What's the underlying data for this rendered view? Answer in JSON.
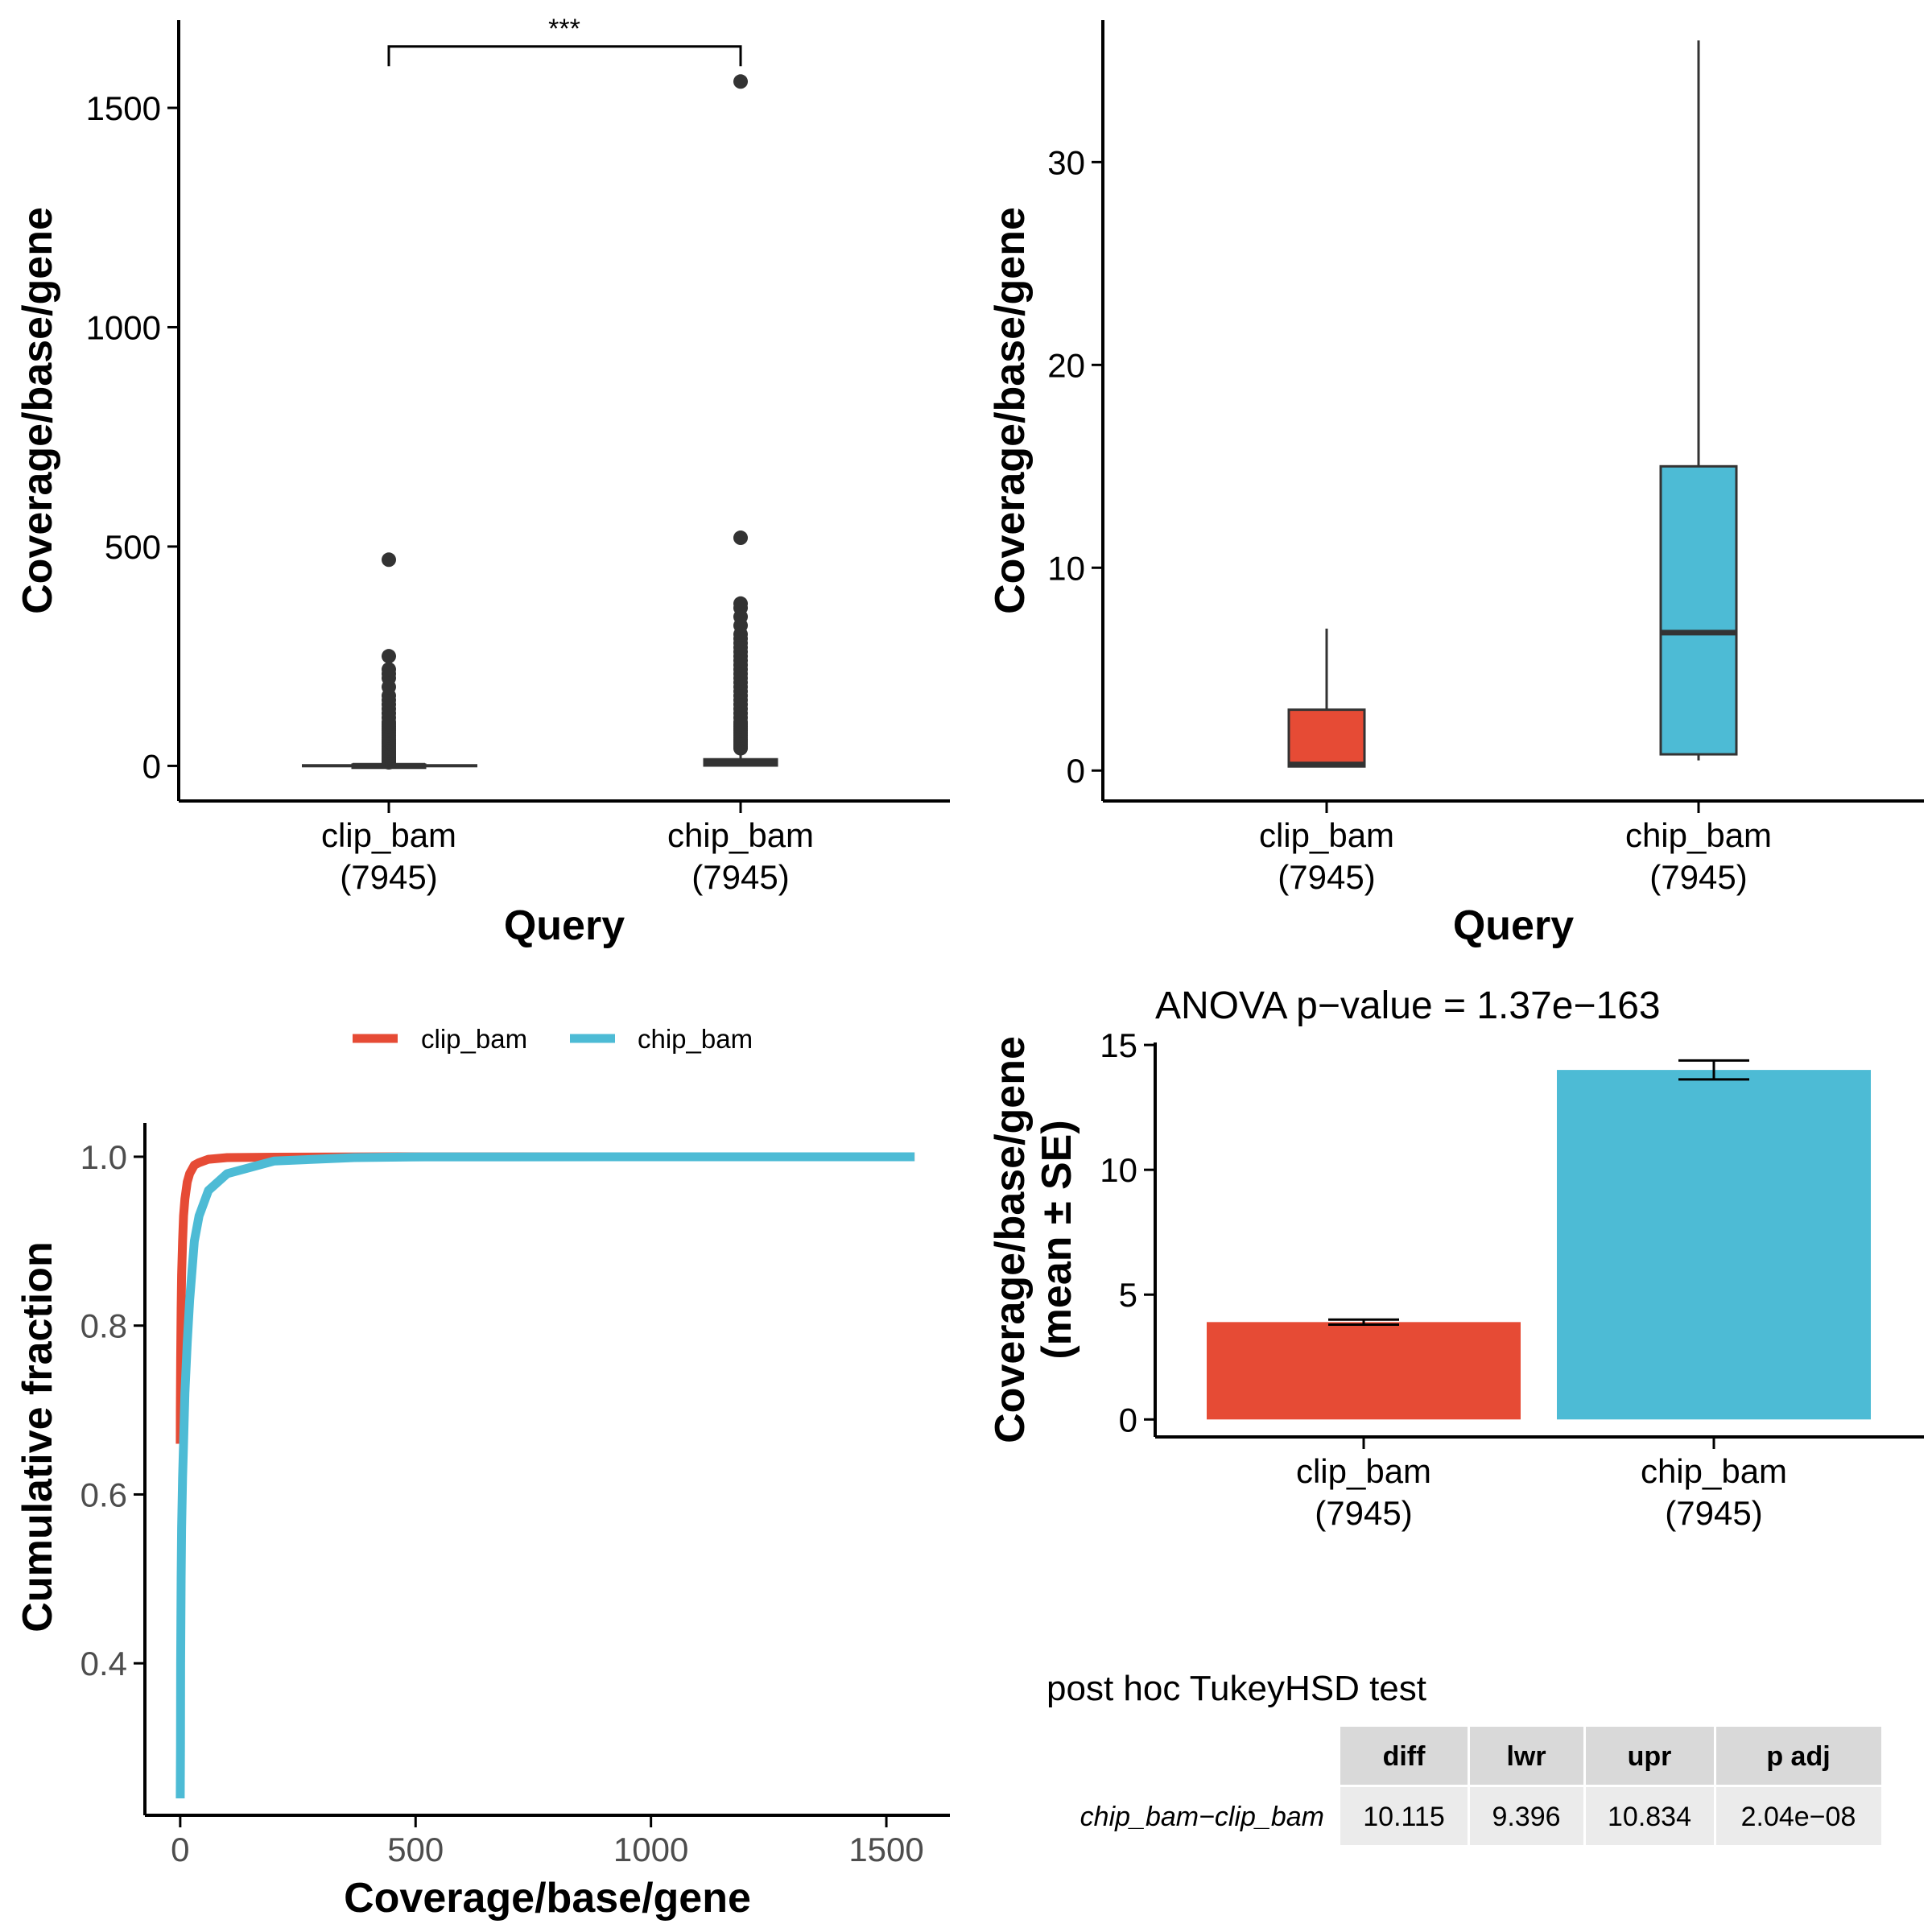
{
  "colors": {
    "clip": "#E64B35",
    "chip": "#4DBBD5",
    "axis": "#000000",
    "box_line": "#333333",
    "table_bg": "#EBEBEB",
    "table_head_bg": "#D9D9D9"
  },
  "chart_data": [
    {
      "id": "boxplot_full",
      "type": "box",
      "xlabel": "Query",
      "ylabel": "Coverage/base/gene",
      "ylim": [
        -80,
        1700
      ],
      "yticks": [
        0,
        500,
        1000,
        1500
      ],
      "categories": [
        {
          "name": "clip_bam",
          "n": "(7945)"
        },
        {
          "name": "chip_bam",
          "n": "(7945)"
        }
      ],
      "boxes": [
        {
          "q1": 0.2,
          "median": 0.3,
          "q3": 3,
          "whisker_low": 0,
          "whisker_high": 7,
          "outliers": [
            8,
            10,
            12,
            14,
            16,
            18,
            20,
            22,
            25,
            28,
            30,
            33,
            36,
            40,
            44,
            48,
            52,
            56,
            60,
            65,
            70,
            75,
            80,
            85,
            90,
            95,
            100,
            110,
            120,
            130,
            140,
            150,
            160,
            180,
            200,
            210,
            220,
            250,
            470
          ]
        },
        {
          "q1": 0.8,
          "median": 6.8,
          "q3": 15,
          "whisker_low": 0.5,
          "whisker_high": 36,
          "outliers": [
            40,
            45,
            50,
            55,
            60,
            65,
            70,
            75,
            80,
            85,
            90,
            95,
            100,
            110,
            120,
            130,
            140,
            150,
            160,
            170,
            180,
            190,
            200,
            210,
            220,
            230,
            240,
            250,
            260,
            270,
            280,
            290,
            300,
            320,
            340,
            360,
            370,
            520,
            1560
          ]
        }
      ],
      "significance": {
        "label": "***",
        "bracket_y": 1640,
        "drop_y": 1595
      }
    },
    {
      "id": "boxplot_zoom",
      "type": "box",
      "xlabel": "Query",
      "ylabel": "Coverage/base/gene",
      "ylim": [
        -1.5,
        37
      ],
      "yticks": [
        0,
        10,
        20,
        30
      ],
      "categories": [
        {
          "name": "clip_bam",
          "n": "(7945)"
        },
        {
          "name": "chip_bam",
          "n": "(7945)"
        }
      ],
      "boxes": [
        {
          "q1": 0.2,
          "median": 0.3,
          "q3": 3,
          "whisker_low": 0.2,
          "whisker_high": 7
        },
        {
          "q1": 0.8,
          "median": 6.8,
          "q3": 15,
          "whisker_low": 0.5,
          "whisker_high": 36
        }
      ]
    },
    {
      "id": "ecdf",
      "type": "line",
      "xlabel": "Coverage/base/gene",
      "ylabel": "Cumulative fraction",
      "xlim": [
        -75,
        1635
      ],
      "ylim": [
        0.22,
        1.04
      ],
      "xticks": [
        0,
        500,
        1000,
        1500
      ],
      "yticks": [
        0.4,
        0.6,
        0.8,
        1.0
      ],
      "ytick_labels": [
        "0.4",
        "0.6",
        "0.8",
        "1.0"
      ],
      "legend_position": "top",
      "series": [
        {
          "name": "clip_bam",
          "x": [
            0,
            0.3,
            1,
            2,
            3,
            5,
            7,
            10,
            15,
            20,
            30,
            40,
            60,
            100,
            200,
            470
          ],
          "y": [
            0.66,
            0.7,
            0.76,
            0.82,
            0.86,
            0.9,
            0.93,
            0.95,
            0.97,
            0.98,
            0.99,
            0.993,
            0.997,
            0.999,
            0.9995,
            1.0
          ]
        },
        {
          "name": "chip_bam",
          "x": [
            0,
            0.5,
            1,
            2,
            3,
            5,
            7,
            10,
            15,
            20,
            30,
            40,
            60,
            100,
            200,
            370,
            520,
            1560
          ],
          "y": [
            0.24,
            0.3,
            0.4,
            0.5,
            0.56,
            0.62,
            0.66,
            0.72,
            0.78,
            0.83,
            0.9,
            0.93,
            0.96,
            0.98,
            0.995,
            0.999,
            0.9999,
            1.0
          ]
        }
      ]
    },
    {
      "id": "barplot",
      "type": "bar",
      "title": "ANOVA p−value = 1.37e−163",
      "ylabel_lines": [
        "Coverage/base/gene",
        "(mean ± SE)"
      ],
      "ylim": [
        -0.7,
        15.1
      ],
      "yticks": [
        0,
        5,
        10,
        15
      ],
      "categories": [
        {
          "name": "clip_bam",
          "n": "(7945)"
        },
        {
          "name": "chip_bam",
          "n": "(7945)"
        }
      ],
      "values": [
        3.9,
        14.0
      ],
      "se": [
        0.1,
        0.38
      ]
    }
  ],
  "tukey": {
    "title": "post hoc TukeyHSD test",
    "columns": [
      "diff",
      "lwr",
      "upr",
      "p adj"
    ],
    "rows": [
      {
        "label": "chip_bam−clip_bam",
        "values": [
          "10.115",
          "9.396",
          "10.834",
          "2.04e−08"
        ]
      }
    ]
  }
}
